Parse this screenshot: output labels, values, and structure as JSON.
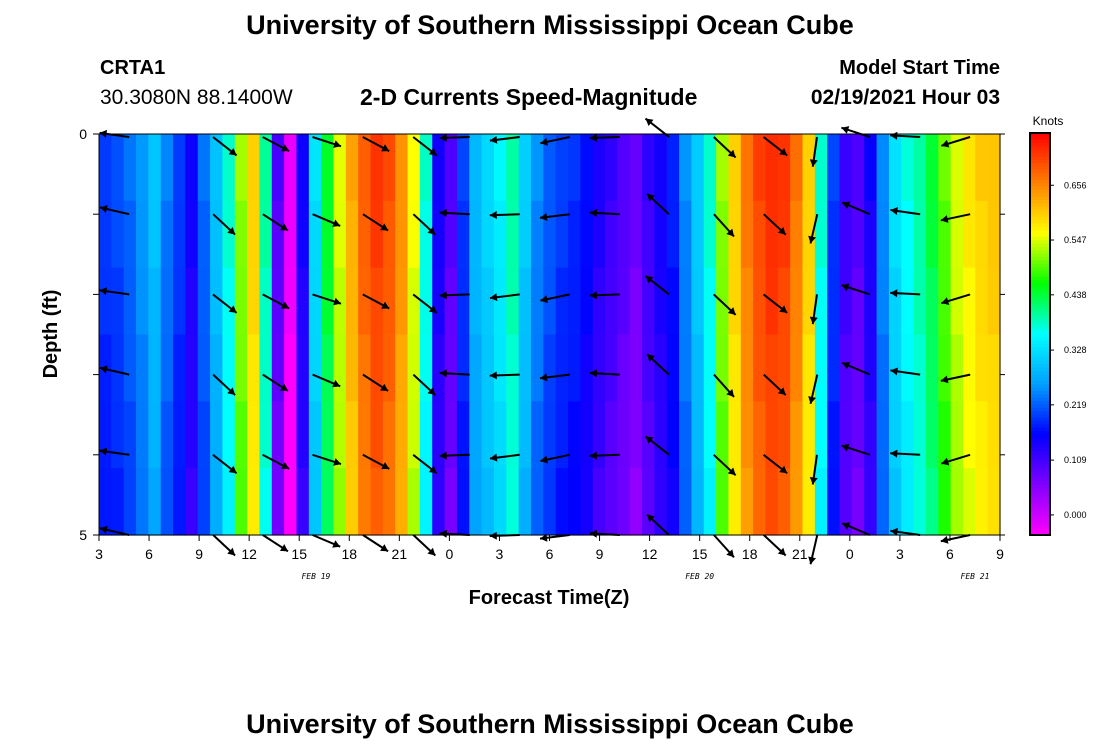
{
  "header": {
    "title": "University of Southern Mississippi Ocean Cube",
    "station_id": "CRTA1",
    "coords": "30.3080N 88.1400W",
    "chart_title": "2-D Currents Speed-Magnitude",
    "model_start_label": "Model Start Time",
    "model_start_value": "02/19/2021 Hour 03"
  },
  "footer": {
    "title": "University of Southern Mississippi Ocean Cube"
  },
  "colors": {
    "scale": [
      "#ff00ff",
      "#8000ff",
      "#0000ff",
      "#00a0ff",
      "#00ffff",
      "#00ff00",
      "#ffff00",
      "#ff8000",
      "#ff0000"
    ],
    "background": "#ffffff",
    "arrow": "#000000"
  },
  "chart_data": {
    "type": "heatmap",
    "title": "2-D Currents Speed-Magnitude",
    "xlabel": "Forecast Time(Z)",
    "ylabel": "Depth (ft)",
    "x_ticks": [
      "3",
      "6",
      "9",
      "12",
      "15",
      "18",
      "21",
      "0",
      "3",
      "6",
      "9",
      "12",
      "15",
      "18",
      "21",
      "0",
      "3",
      "6",
      "9"
    ],
    "date_labels": [
      {
        "label": "FEB 19",
        "at_hour": 13
      },
      {
        "label": "FEB 20",
        "at_hour": 36
      },
      {
        "label": "FEB 21",
        "at_hour": 52.5
      }
    ],
    "x_range_hours": [
      0,
      54
    ],
    "y_range": [
      0,
      5
    ],
    "y_tick_labels": [
      "0",
      "5"
    ],
    "colorbar": {
      "title": "Knots",
      "min": -0.04,
      "max": 0.76,
      "ticks": [
        "0.656",
        "0.547",
        "0.438",
        "0.328",
        "0.219",
        "0.109",
        "0.000"
      ],
      "tick_values": [
        0.656,
        0.547,
        0.438,
        0.328,
        0.219,
        0.109,
        0.0
      ]
    },
    "speed_profile": [
      0.2,
      0.21,
      0.23,
      0.26,
      0.3,
      0.24,
      0.2,
      0.15,
      0.23,
      0.3,
      0.38,
      0.52,
      0.6,
      0.4,
      0.1,
      -0.02,
      0.15,
      0.33,
      0.45,
      0.55,
      0.63,
      0.69,
      0.72,
      0.7,
      0.65,
      0.56,
      0.38,
      0.15,
      0.1,
      0.2,
      0.29,
      0.32,
      0.35,
      0.4,
      0.31,
      0.25,
      0.22,
      0.2,
      0.19,
      0.17,
      0.14,
      0.12,
      0.1,
      0.08,
      0.12,
      0.15,
      0.18,
      0.25,
      0.31,
      0.38,
      0.52,
      0.6,
      0.67,
      0.71,
      0.73,
      0.72,
      0.67,
      0.6,
      0.38,
      0.2,
      0.12,
      0.1,
      0.15,
      0.25,
      0.33,
      0.37,
      0.4,
      0.44,
      0.5,
      0.55,
      0.58,
      0.6,
      0.61
    ],
    "arrow_columns": [
      {
        "hour": 1.6,
        "dir_deg": 190
      },
      {
        "hour": 7.0,
        "dir_deg": 40
      },
      {
        "hour": 10.0,
        "dir_deg": 30
      },
      {
        "hour": 13.0,
        "dir_deg": 20
      },
      {
        "hour": 16.0,
        "dir_deg": 30
      },
      {
        "hour": 19.0,
        "dir_deg": 40
      },
      {
        "hour": 22.0,
        "dir_deg": 180
      },
      {
        "hour": 25.0,
        "dir_deg": 175
      },
      {
        "hour": 28.0,
        "dir_deg": 170
      },
      {
        "hour": 31.0,
        "dir_deg": 180
      },
      {
        "hour": 34.0,
        "dir_deg": 220
      },
      {
        "hour": 37.0,
        "dir_deg": 45
      },
      {
        "hour": 40.0,
        "dir_deg": 40
      },
      {
        "hour": 43.0,
        "dir_deg": 100
      },
      {
        "hour": 46.0,
        "dir_deg": 200
      },
      {
        "hour": 49.0,
        "dir_deg": 185
      },
      {
        "hour": 52.0,
        "dir_deg": 165
      }
    ]
  }
}
